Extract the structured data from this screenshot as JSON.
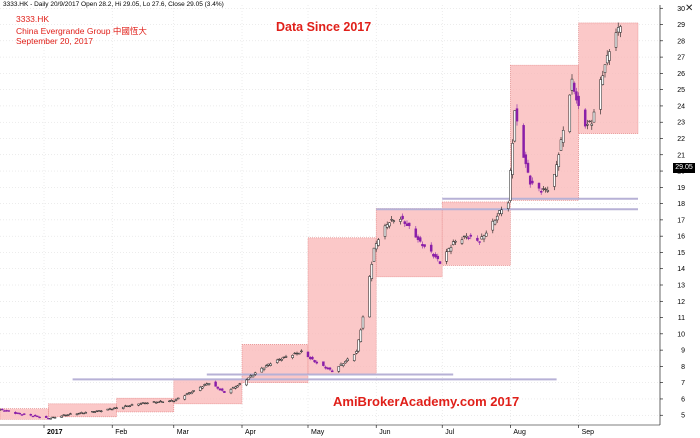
{
  "header": {
    "info_line": "3333.HK - Daily 20/9/2017 Open 28.2, Hi 29.05, Lo 27.6, Close 29.05 (3.4%)",
    "ticker": "3333.HK",
    "company": "China Evergrande Group 中國恆大",
    "date": "September 20, 2017"
  },
  "annotations": {
    "since": "Data Since 2017",
    "brand": "AmiBrokerAcademy.com  2017"
  },
  "close_badge": "29.05",
  "close_icon": "close-x-icon",
  "colors": {
    "up": "#1a1a1a",
    "down": "#8a1fa8",
    "box_fill": "#f9b5b5",
    "box_stroke": "#e07a7a",
    "level_line": "#b7b1d6",
    "grid": "#d8d8d8",
    "title_red": "#e0201a"
  },
  "chart_data": {
    "type": "candlestick",
    "x_ticks": [
      "2017",
      "Feb",
      "Mar",
      "Apr",
      "May",
      "Jun",
      "Jul",
      "Aug",
      "Sep"
    ],
    "y_ticks": [
      5,
      6,
      7,
      8,
      9,
      10,
      11,
      12,
      13,
      14,
      15,
      16,
      17,
      18,
      19,
      20,
      21,
      22,
      23,
      24,
      25,
      26,
      27,
      28,
      29,
      30
    ],
    "ylim": [
      4.4,
      30.2
    ],
    "xlim": [
      "2016-12-12",
      "2017-10-08"
    ],
    "grid": true,
    "last_close": 29.05,
    "boxes": [
      {
        "start": "2016-12-12",
        "end": "2017-01-03",
        "low": 4.75,
        "high": 5.4
      },
      {
        "start": "2017-01-03",
        "end": "2017-02-03",
        "low": 4.9,
        "high": 5.7
      },
      {
        "start": "2017-02-03",
        "end": "2017-03-01",
        "low": 5.2,
        "high": 6.05
      },
      {
        "start": "2017-03-01",
        "end": "2017-04-01",
        "low": 5.7,
        "high": 7.2
      },
      {
        "start": "2017-04-01",
        "end": "2017-05-01",
        "low": 7.0,
        "high": 9.35
      },
      {
        "start": "2017-05-01",
        "end": "2017-06-01",
        "low": 7.5,
        "high": 15.9
      },
      {
        "start": "2017-06-01",
        "end": "2017-07-01",
        "low": 13.5,
        "high": 17.7
      },
      {
        "start": "2017-07-01",
        "end": "2017-08-01",
        "low": 14.2,
        "high": 18.1
      },
      {
        "start": "2017-08-01",
        "end": "2017-09-01",
        "low": 18.2,
        "high": 26.5
      },
      {
        "start": "2017-09-01",
        "end": "2017-09-28",
        "low": 22.3,
        "high": 29.1
      }
    ],
    "levels": [
      {
        "from": "2017-01-14",
        "to": "2017-08-22",
        "y": 7.2
      },
      {
        "from": "2017-03-16",
        "to": "2017-07-06",
        "y": 7.5
      },
      {
        "from": "2017-06-01",
        "to": "2017-09-28",
        "y": 17.65
      },
      {
        "from": "2017-07-01",
        "to": "2017-09-28",
        "y": 18.3
      }
    ],
    "path": [
      [
        "2016-12-12",
        5.35
      ],
      [
        "2016-12-20",
        5.1
      ],
      [
        "2016-12-28",
        4.95
      ],
      [
        "2017-01-03",
        4.8
      ],
      [
        "2017-01-12",
        5.05
      ],
      [
        "2017-01-25",
        5.25
      ],
      [
        "2017-02-03",
        5.45
      ],
      [
        "2017-02-15",
        5.75
      ],
      [
        "2017-03-01",
        5.9
      ],
      [
        "2017-03-10",
        6.5
      ],
      [
        "2017-03-17",
        7.0
      ],
      [
        "2017-03-24",
        6.4
      ],
      [
        "2017-03-31",
        6.9
      ],
      [
        "2017-04-07",
        7.6
      ],
      [
        "2017-04-14",
        8.2
      ],
      [
        "2017-04-21",
        8.6
      ],
      [
        "2017-04-28",
        8.9
      ],
      [
        "2017-05-04",
        8.3
      ],
      [
        "2017-05-12",
        7.7
      ],
      [
        "2017-05-18",
        8.3
      ],
      [
        "2017-05-23",
        8.9
      ],
      [
        "2017-05-26",
        11.0
      ],
      [
        "2017-05-29",
        13.5
      ],
      [
        "2017-05-31",
        15.2
      ],
      [
        "2017-06-03",
        16.2
      ],
      [
        "2017-06-07",
        16.9
      ],
      [
        "2017-06-12",
        17.1
      ],
      [
        "2017-06-17",
        16.4
      ],
      [
        "2017-06-21",
        15.6
      ],
      [
        "2017-06-26",
        15.0
      ],
      [
        "2017-06-30",
        14.4
      ],
      [
        "2017-07-06",
        15.6
      ],
      [
        "2017-07-12",
        16.0
      ],
      [
        "2017-07-18",
        15.7
      ],
      [
        "2017-07-23",
        16.6
      ],
      [
        "2017-07-28",
        17.7
      ],
      [
        "2017-07-31",
        18.05
      ],
      [
        "2017-08-03",
        23.7
      ],
      [
        "2017-08-06",
        21.5
      ],
      [
        "2017-08-10",
        19.3
      ],
      [
        "2017-08-15",
        18.8
      ],
      [
        "2017-08-20",
        19.0
      ],
      [
        "2017-08-24",
        21.8
      ],
      [
        "2017-08-29",
        25.5
      ],
      [
        "2017-09-03",
        22.8
      ],
      [
        "2017-09-07",
        23.0
      ],
      [
        "2017-09-11",
        25.5
      ],
      [
        "2017-09-15",
        27.5
      ],
      [
        "2017-09-20",
        29.05
      ]
    ]
  }
}
